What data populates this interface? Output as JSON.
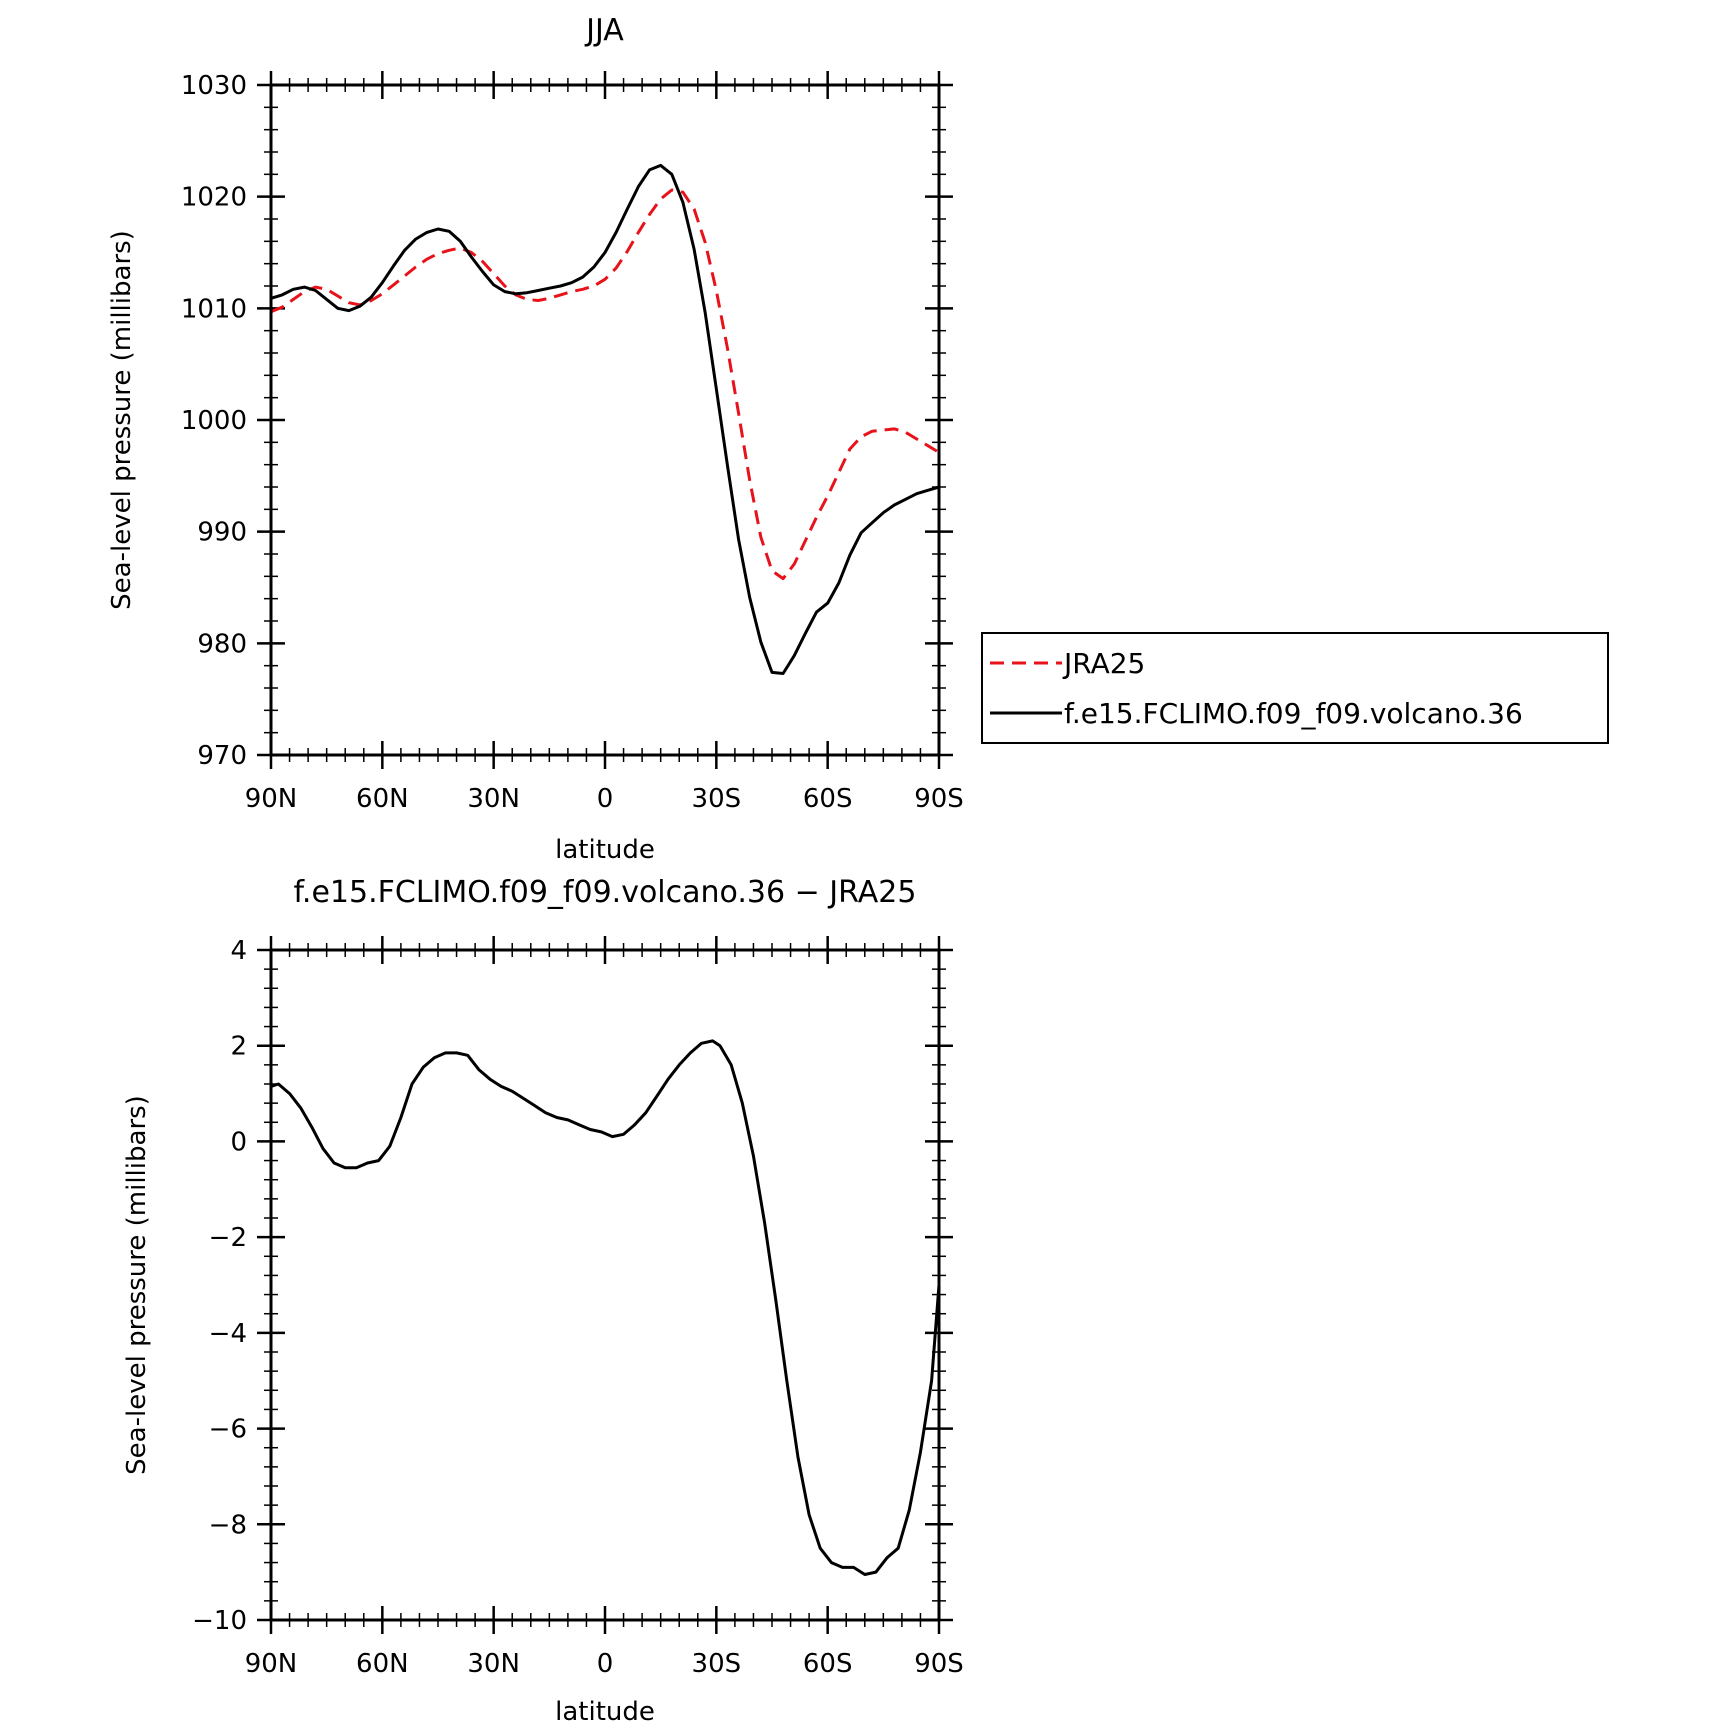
{
  "colors": {
    "model": "#000000",
    "reference": "#e8121b",
    "axis": "#000000",
    "background": "#ffffff"
  },
  "chart_data": [
    {
      "type": "line",
      "title": "JJA",
      "xlabel": "latitude",
      "ylabel": "Sea-level pressure (millibars)",
      "xlim": [
        -90,
        90
      ],
      "ylim": [
        970,
        1030
      ],
      "x_ticks": [
        -90,
        -60,
        -30,
        0,
        30,
        60,
        90
      ],
      "x_tick_labels": [
        "90N",
        "60N",
        "30N",
        "0",
        "30S",
        "60S",
        "90S"
      ],
      "y_ticks": [
        970,
        980,
        990,
        1000,
        1010,
        1020,
        1030
      ],
      "y_tick_labels": [
        "970",
        "980",
        "990",
        "1000",
        "1010",
        "1020",
        "1030"
      ],
      "grid": false,
      "legend": "outside-right",
      "series": [
        {
          "name": "JRA25",
          "style": "dashed",
          "color": "#e8121b",
          "x": [
            -90,
            -87,
            -84,
            -81,
            -78,
            -75,
            -72,
            -69,
            -66,
            -63,
            -60,
            -57,
            -54,
            -51,
            -48,
            -45,
            -42,
            -39,
            -36,
            -33,
            -30,
            -27,
            -24,
            -21,
            -18,
            -15,
            -12,
            -9,
            -6,
            -3,
            0,
            3,
            6,
            9,
            12,
            15,
            18,
            21,
            24,
            27,
            30,
            33,
            36,
            39,
            42,
            45,
            48,
            51,
            54,
            57,
            60,
            63,
            66,
            69,
            72,
            75,
            78,
            81,
            84,
            87,
            90
          ],
          "values": [
            1009.7,
            1010.1,
            1010.8,
            1011.5,
            1011.9,
            1011.7,
            1011.1,
            1010.5,
            1010.3,
            1010.7,
            1011.3,
            1012.1,
            1012.9,
            1013.7,
            1014.4,
            1014.9,
            1015.2,
            1015.4,
            1015.0,
            1014.2,
            1013.1,
            1012.0,
            1011.2,
            1010.8,
            1010.7,
            1010.9,
            1011.2,
            1011.5,
            1011.7,
            1012.0,
            1012.6,
            1013.6,
            1015.1,
            1016.8,
            1018.4,
            1019.8,
            1020.6,
            1020.4,
            1018.9,
            1015.9,
            1011.6,
            1006.4,
            1000.6,
            994.6,
            989.5,
            986.5,
            985.8,
            987.1,
            989.2,
            991.3,
            993.2,
            995.3,
            997.4,
            998.5,
            999.0,
            999.1,
            999.2,
            998.9,
            998.3,
            997.7,
            997.1
          ]
        },
        {
          "name": "f.e15.FCLIMO.f09_f09.volcano.36",
          "style": "solid",
          "color": "#000000",
          "x": [
            -90,
            -87,
            -84,
            -81,
            -78,
            -75,
            -72,
            -69,
            -66,
            -63,
            -60,
            -57,
            -54,
            -51,
            -48,
            -45,
            -42,
            -39,
            -36,
            -33,
            -30,
            -27,
            -24,
            -21,
            -18,
            -15,
            -12,
            -9,
            -6,
            -3,
            0,
            3,
            6,
            9,
            12,
            15,
            18,
            21,
            24,
            27,
            30,
            33,
            36,
            39,
            42,
            45,
            48,
            51,
            54,
            57,
            60,
            63,
            66,
            69,
            72,
            75,
            78,
            81,
            84,
            87,
            90
          ],
          "values": [
            1010.9,
            1011.2,
            1011.7,
            1011.9,
            1011.6,
            1010.8,
            1010.0,
            1009.8,
            1010.2,
            1011.0,
            1012.3,
            1013.8,
            1015.2,
            1016.2,
            1016.8,
            1017.1,
            1016.9,
            1016.0,
            1014.6,
            1013.3,
            1012.1,
            1011.5,
            1011.3,
            1011.4,
            1011.6,
            1011.8,
            1012.0,
            1012.3,
            1012.8,
            1013.7,
            1015.0,
            1016.8,
            1018.9,
            1020.9,
            1022.4,
            1022.8,
            1022.0,
            1019.5,
            1015.3,
            1009.6,
            1002.8,
            995.9,
            989.3,
            984.1,
            980.1,
            977.4,
            977.3,
            978.9,
            980.9,
            982.8,
            983.6,
            985.4,
            987.9,
            989.9,
            990.8,
            991.7,
            992.4,
            992.9,
            993.4,
            993.7,
            994.0
          ]
        }
      ]
    },
    {
      "type": "line",
      "title": "f.e15.FCLIMO.f09_f09.volcano.36 − JRA25",
      "xlabel": "latitude",
      "ylabel": "Sea-level pressure (millibars)",
      "xlim": [
        -90,
        90
      ],
      "ylim": [
        -10,
        4
      ],
      "x_ticks": [
        -90,
        -60,
        -30,
        0,
        30,
        60,
        90
      ],
      "x_tick_labels": [
        "90N",
        "60N",
        "30N",
        "0",
        "30S",
        "60S",
        "90S"
      ],
      "y_ticks": [
        -10,
        -8,
        -6,
        -4,
        -2,
        0,
        2,
        4
      ],
      "y_tick_labels": [
        "−10",
        "−8",
        "−6",
        "−4",
        "−2",
        "0",
        "2",
        "4"
      ],
      "grid": false,
      "legend": "none",
      "series": [
        {
          "style": "solid",
          "color": "#000000",
          "x": [
            -90,
            -88,
            -85,
            -82,
            -79,
            -76,
            -73,
            -70,
            -67,
            -64,
            -61,
            -58,
            -55,
            -52,
            -49,
            -46,
            -43,
            -40,
            -37,
            -34,
            -31,
            -28,
            -25,
            -22,
            -19,
            -16,
            -13,
            -10,
            -7,
            -4,
            -1,
            2,
            5,
            8,
            11,
            14,
            17,
            20,
            23,
            26,
            29,
            31,
            34,
            37,
            40,
            43,
            46,
            49,
            52,
            55,
            58,
            61,
            64,
            67,
            70,
            73,
            76,
            79,
            82,
            85,
            88,
            90
          ],
          "values": [
            1.15,
            1.2,
            1.0,
            0.7,
            0.3,
            -0.15,
            -0.45,
            -0.55,
            -0.55,
            -0.45,
            -0.4,
            -0.1,
            0.5,
            1.2,
            1.55,
            1.75,
            1.85,
            1.85,
            1.8,
            1.5,
            1.3,
            1.15,
            1.05,
            0.9,
            0.75,
            0.6,
            0.5,
            0.45,
            0.35,
            0.25,
            0.2,
            0.1,
            0.15,
            0.35,
            0.6,
            0.95,
            1.3,
            1.6,
            1.85,
            2.05,
            2.1,
            2.0,
            1.6,
            0.8,
            -0.3,
            -1.7,
            -3.3,
            -5.0,
            -6.6,
            -7.8,
            -8.5,
            -8.8,
            -8.9,
            -8.9,
            -9.05,
            -9.0,
            -8.7,
            -8.5,
            -7.7,
            -6.5,
            -5.0,
            -3.0
          ]
        }
      ]
    }
  ]
}
